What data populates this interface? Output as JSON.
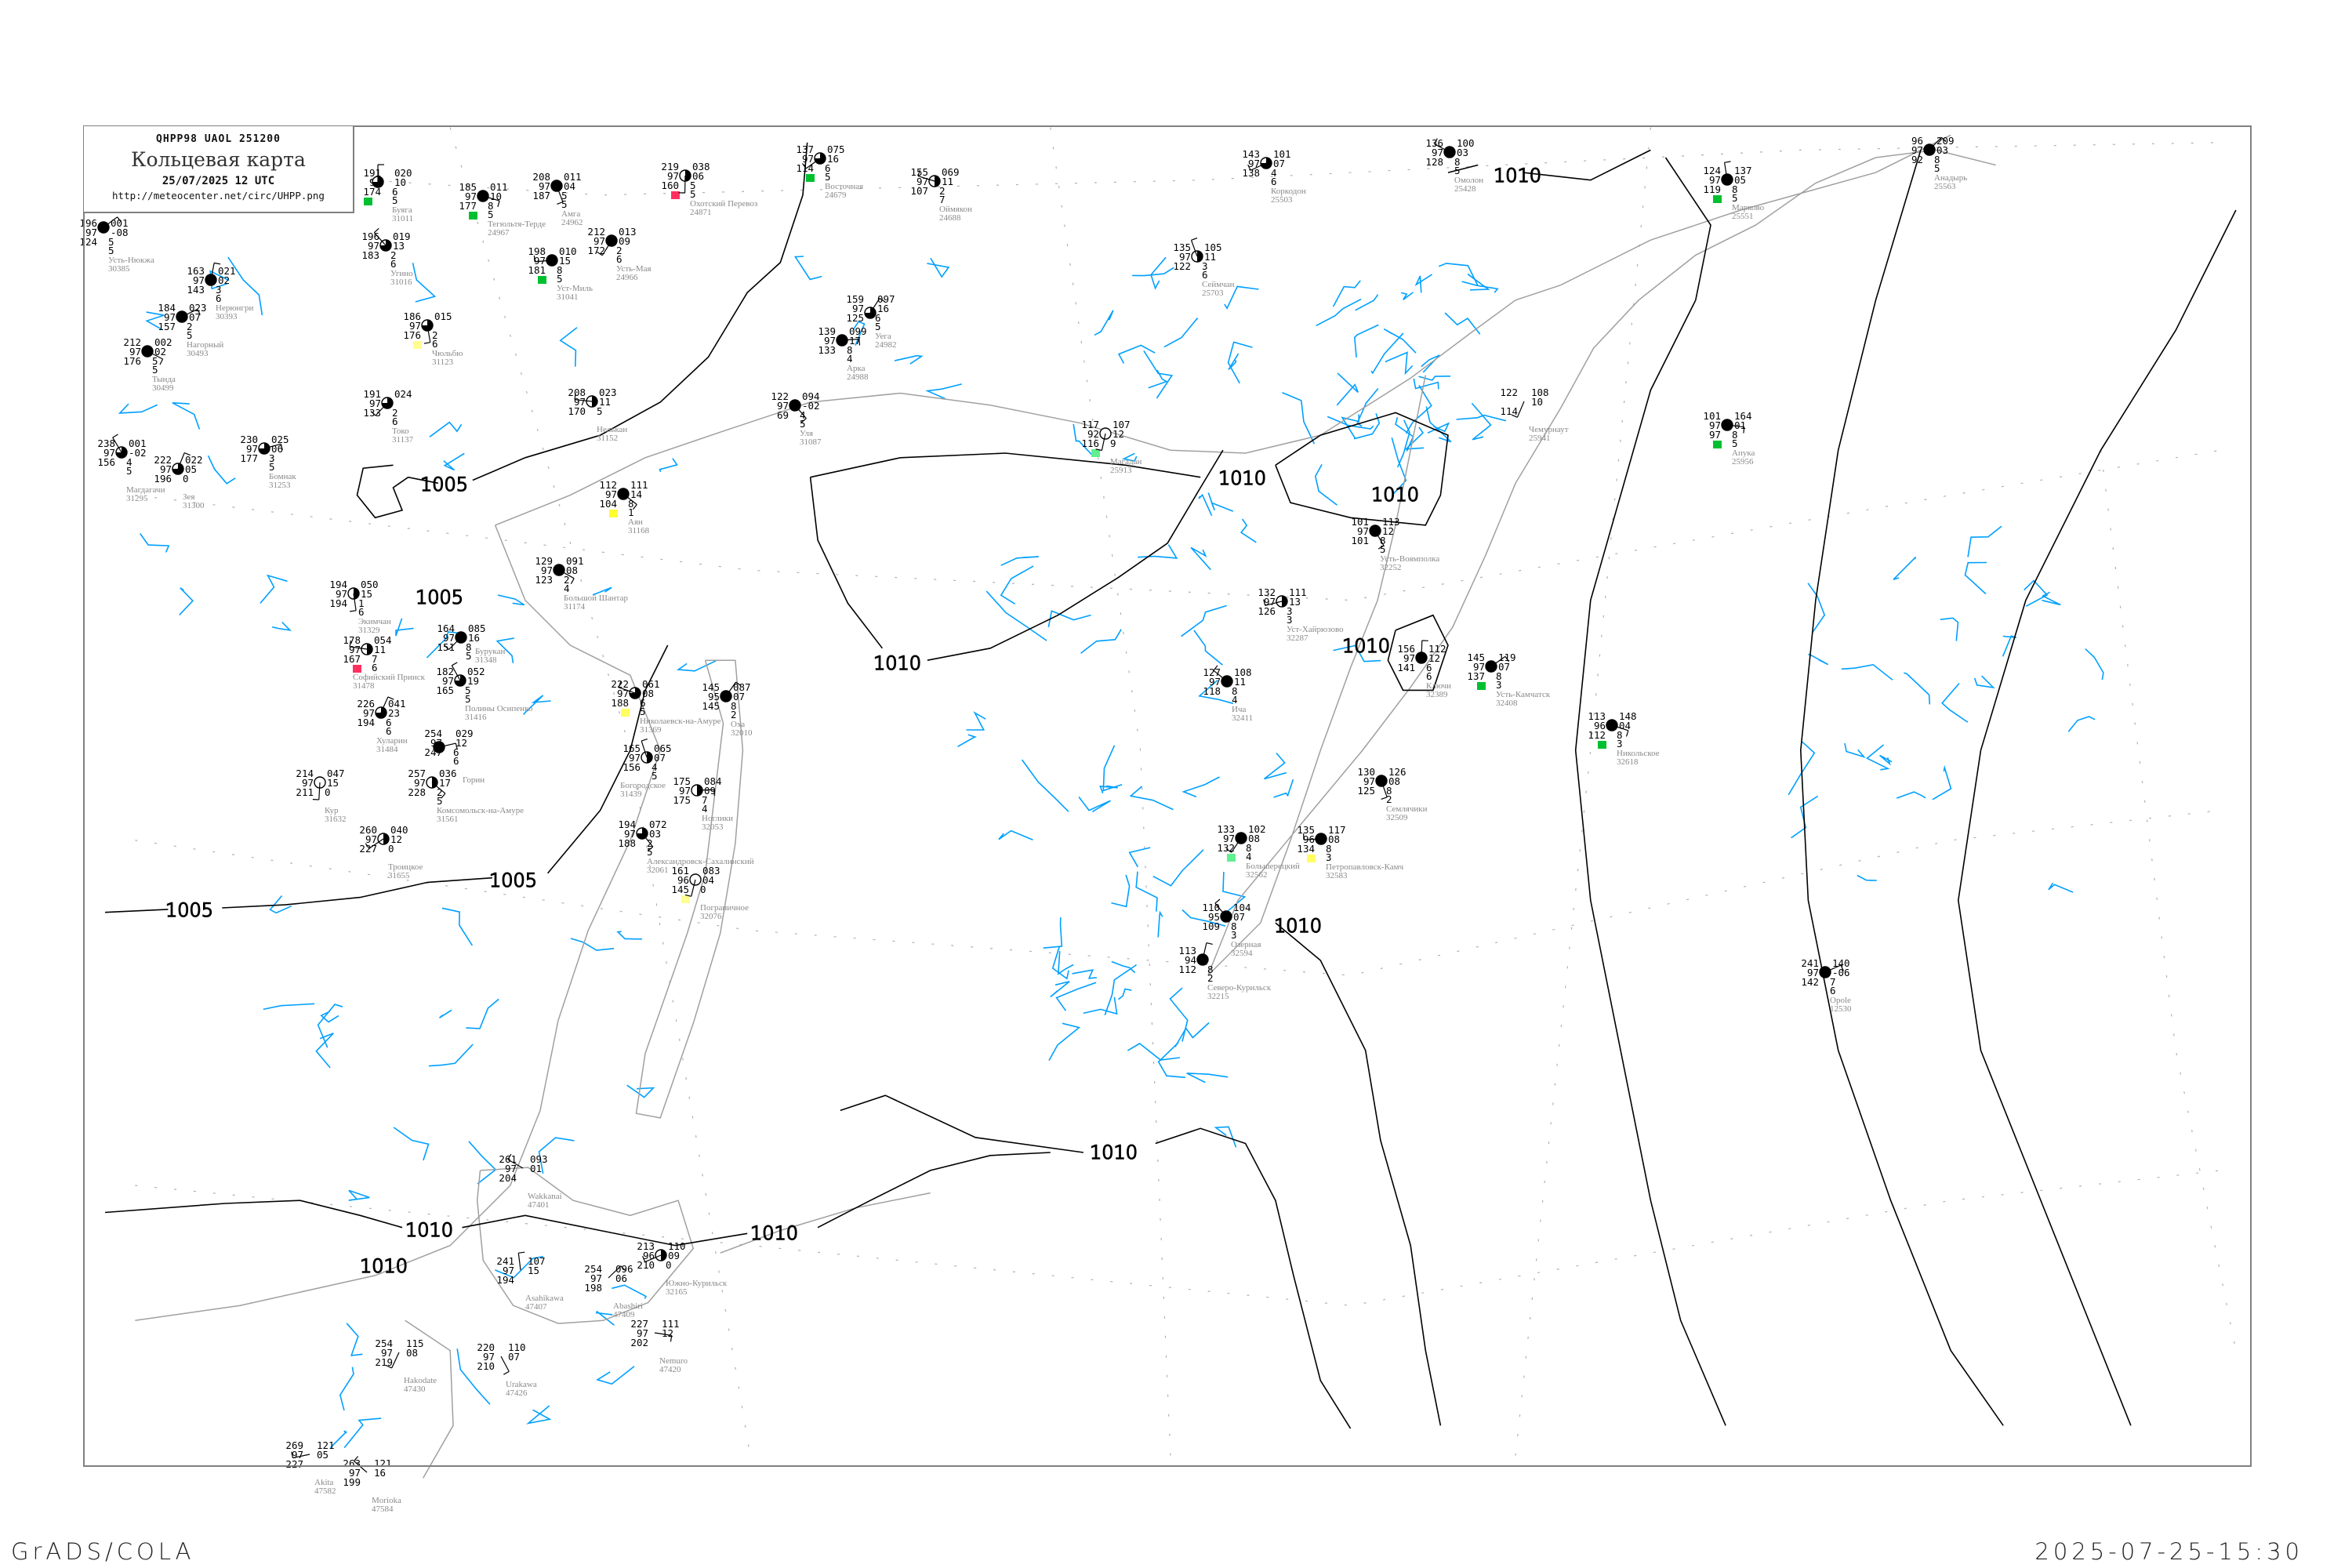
{
  "header": {
    "codes": "QHPP98  UAOL  251200",
    "title": "Кольцевая карта",
    "datetime": "25/07/2025 12 UTC",
    "url": "http://meteocenter.net/circ/UHPP.png"
  },
  "footer": {
    "software": "GrADS/COLA",
    "timestamp": "2025-07-25-15:30"
  },
  "colors": {
    "isobar": "#000000",
    "coastline": "#a0a0a0",
    "rivers": "#00a0ff",
    "frame": "#808080",
    "station_name": "#8a8a8a",
    "precip_green": "#00c030",
    "precip_red": "#ff3060",
    "precip_yellow": "#ffff30"
  },
  "isobars": {
    "labels": [
      "1005",
      "1005",
      "1005",
      "1005",
      "1010",
      "1010",
      "1010",
      "1010",
      "1010",
      "1010",
      "1010",
      "1010",
      "1010",
      "1010"
    ]
  },
  "stations": [
    {
      "name": "Буяга",
      "index": "31011",
      "temp": "191",
      "pressure": "020",
      "vis": "97",
      "tendency": "10",
      "dewpoint": "174",
      "low": "6",
      "height": "5",
      "cloud": 0.75
    },
    {
      "name": "Усть-Нюкжа",
      "index": "30385",
      "temp": "196",
      "pressure": "001",
      "vis": "97",
      "tendency": "-08",
      "dewpoint": "124",
      "low": "5",
      "height": "5",
      "cloud": 1
    },
    {
      "name": "Тегюльтя-Терде",
      "index": "24967",
      "temp": "185",
      "pressure": "011",
      "vis": "97",
      "tendency": "10",
      "dewpoint": "177",
      "low": "8",
      "height": "5",
      "cloud": 1
    },
    {
      "name": "Амга",
      "index": "24962",
      "temp": "208",
      "pressure": "011",
      "vis": "97",
      "tendency": "04",
      "dewpoint": "187",
      "low": "5",
      "height": "5",
      "cloud": 1
    },
    {
      "name": "Усть-Мая",
      "index": "24966",
      "temp": "212",
      "pressure": "013",
      "vis": "97",
      "tendency": "09",
      "dewpoint": "172",
      "low": "2",
      "height": "6",
      "cloud": 1
    },
    {
      "name": "Уст-Миль",
      "index": "31041",
      "temp": "198",
      "pressure": "010",
      "vis": "97",
      "tendency": "15",
      "dewpoint": "181",
      "low": "8",
      "height": "5",
      "cloud": 1
    },
    {
      "name": "Угино",
      "index": "31016",
      "temp": "196",
      "pressure": "019",
      "vis": "97",
      "tendency": "13",
      "dewpoint": "183",
      "low": "2",
      "height": "6",
      "cloud": 0.75
    },
    {
      "name": "Нерюнгри",
      "index": "30393",
      "temp": "163",
      "pressure": "021",
      "vis": "97",
      "tendency": "02",
      "dewpoint": "143",
      "low": "3",
      "height": "6",
      "cloud": 1
    },
    {
      "name": "Нагорный",
      "index": "30493",
      "temp": "184",
      "pressure": "023",
      "vis": "97",
      "tendency": "07",
      "dewpoint": "157",
      "low": "2",
      "height": "5",
      "cloud": 1
    },
    {
      "name": "Тында",
      "index": "30499",
      "temp": "212",
      "pressure": "002",
      "vis": "97",
      "tendency": "02",
      "dewpoint": "176",
      "low": "5",
      "height": "5",
      "cloud": 1
    },
    {
      "name": "Чюльбю",
      "index": "31123",
      "temp": "186",
      "pressure": "015",
      "vis": "97",
      "tendency": "",
      "dewpoint": "176",
      "low": "2",
      "height": "6",
      "cloud": 0.75
    },
    {
      "name": "Токо",
      "index": "31137",
      "temp": "191",
      "pressure": "024",
      "vis": "97",
      "tendency": "",
      "dewpoint": "133",
      "low": "2",
      "height": "6",
      "cloud": 0.75
    },
    {
      "name": "Нелькан",
      "index": "31152",
      "temp": "208",
      "pressure": "023",
      "vis": "97",
      "tendency": "11",
      "dewpoint": "170",
      "low": "5",
      "height": "",
      "cloud": 0.5
    },
    {
      "name": "Магдагачи",
      "index": "31295",
      "temp": "238",
      "pressure": "001",
      "vis": "97",
      "tendency": "-02",
      "dewpoint": "156",
      "low": "4",
      "height": "5",
      "cloud": 0.75
    },
    {
      "name": "Зея",
      "index": "31300",
      "temp": "222",
      "pressure": "022",
      "vis": "97",
      "tendency": "05",
      "dewpoint": "196",
      "low": "0",
      "height": "",
      "cloud": 0.75
    },
    {
      "name": "Бомнак",
      "index": "31253",
      "temp": "230",
      "pressure": "025",
      "vis": "97",
      "tendency": "06",
      "dewpoint": "177",
      "low": "3",
      "height": "5",
      "cloud": 0.75
    },
    {
      "name": "Аян",
      "index": "31168",
      "temp": "112",
      "pressure": "111",
      "vis": "97",
      "tendency": "14",
      "dewpoint": "104",
      "low": "8",
      "height": "1",
      "cloud": 1
    },
    {
      "name": "Охотский Перевоз",
      "index": "24871",
      "temp": "219",
      "pressure": "038",
      "vis": "97",
      "tendency": "06",
      "dewpoint": "160",
      "low": "5",
      "height": "5",
      "cloud": 0.5
    },
    {
      "name": "Восточная",
      "index": "24679",
      "temp": "137",
      "pressure": "075",
      "vis": "97",
      "tendency": "16",
      "dewpoint": "114",
      "low": "6",
      "height": "5",
      "cloud": 0.75
    },
    {
      "name": "Оймякон",
      "index": "24688",
      "temp": "155",
      "pressure": "069",
      "vis": "97",
      "tendency": "11",
      "dewpoint": "107",
      "low": "2",
      "height": "7",
      "cloud": 0.5
    },
    {
      "name": "Сеймчан",
      "index": "25703",
      "temp": "135",
      "pressure": "105",
      "vis": "97",
      "tendency": "11",
      "dewpoint": "122",
      "low": "3",
      "height": "6",
      "cloud": 0.5
    },
    {
      "name": "Уега",
      "index": "24982",
      "temp": "159",
      "pressure": "097",
      "vis": "97",
      "tendency": "16",
      "dewpoint": "125",
      "low": "6",
      "height": "5",
      "cloud": 0.75
    },
    {
      "name": "Арка",
      "index": "24988",
      "temp": "139",
      "pressure": "099",
      "vis": "97",
      "tendency": "17",
      "dewpoint": "133",
      "low": "8",
      "height": "4",
      "cloud": 1
    },
    {
      "name": "Уля",
      "index": "31087",
      "temp": "122",
      "pressure": "094",
      "vis": "97",
      "tendency": "-02",
      "dewpoint": "69",
      "low": "4",
      "height": "5",
      "cloud": 1
    },
    {
      "name": "Магадан",
      "index": "25913",
      "temp": "117",
      "pressure": "107",
      "vis": "92",
      "tendency": "12",
      "dewpoint": "116",
      "low": "9",
      "height": "",
      "cloud": 0
    },
    {
      "name": "Коркодон",
      "index": "25503",
      "temp": "143",
      "pressure": "101",
      "vis": "97",
      "tendency": "07",
      "dewpoint": "138",
      "low": "4",
      "height": "6",
      "cloud": 0.75
    },
    {
      "name": "Омолон",
      "index": "25428",
      "temp": "136",
      "pressure": "100",
      "vis": "97",
      "tendency": "03",
      "dewpoint": "128",
      "low": "8",
      "height": "5",
      "cloud": 1
    },
    {
      "name": "Марково",
      "index": "25551",
      "temp": "124",
      "pressure": "137",
      "vis": "97",
      "tendency": "05",
      "dewpoint": "119",
      "low": "8",
      "height": "5",
      "cloud": 1
    },
    {
      "name": "Анадырь",
      "index": "25563",
      "temp": "96",
      "pressure": "209",
      "vis": "97",
      "tendency": "03",
      "dewpoint": "92",
      "low": "8",
      "height": "5",
      "cloud": 1
    },
    {
      "name": "Апука",
      "index": "25956",
      "temp": "101",
      "pressure": "164",
      "vis": "97",
      "tendency": "01",
      "dewpoint": "97",
      "low": "8",
      "height": "5",
      "cloud": 1
    },
    {
      "name": "Усть-Воямполка",
      "index": "32252",
      "temp": "101",
      "pressure": "113",
      "vis": "97",
      "tendency": "12",
      "dewpoint": "101",
      "low": "8",
      "height": "5",
      "cloud": 1
    },
    {
      "name": "Чемурнаут",
      "index": "25941",
      "temp": "122",
      "pressure": "108",
      "vis": "",
      "tendency": "10",
      "dewpoint": "114",
      "low": "",
      "height": "",
      "cloud": -1
    },
    {
      "name": "Уст-Хайрюзово",
      "index": "32287",
      "temp": "132",
      "pressure": "111",
      "vis": "97",
      "tendency": "13",
      "dewpoint": "126",
      "low": "3",
      "height": "3",
      "cloud": 0.5
    },
    {
      "name": "Ича",
      "index": "32411",
      "temp": "127",
      "pressure": "108",
      "vis": "97",
      "tendency": "11",
      "dewpoint": "118",
      "low": "8",
      "height": "4",
      "cloud": 1
    },
    {
      "name": "Ключи",
      "index": "32389",
      "temp": "156",
      "pressure": "112",
      "vis": "97",
      "tendency": "12",
      "dewpoint": "141",
      "low": "6",
      "height": "6",
      "cloud": 1
    },
    {
      "name": "Усть-Камчатск",
      "index": "32408",
      "temp": "145",
      "pressure": "119",
      "vis": "97",
      "tendency": "07",
      "dewpoint": "137",
      "low": "8",
      "height": "3",
      "cloud": 1
    },
    {
      "name": "Никольское",
      "index": "32618",
      "temp": "113",
      "pressure": "148",
      "vis": "96",
      "tendency": "04",
      "dewpoint": "112",
      "low": "8",
      "height": "3",
      "cloud": 1
    },
    {
      "name": "Семлячики",
      "index": "32509",
      "temp": "130",
      "pressure": "126",
      "vis": "97",
      "tendency": "08",
      "dewpoint": "125",
      "low": "8",
      "height": "2",
      "cloud": 1
    },
    {
      "name": "Большерецкий",
      "index": "32562",
      "temp": "133",
      "pressure": "102",
      "vis": "97",
      "tendency": "08",
      "dewpoint": "132",
      "low": "8",
      "height": "4",
      "cloud": 1
    },
    {
      "name": "Петропавловск-Камч",
      "index": "32583",
      "temp": "135",
      "pressure": "117",
      "vis": "96",
      "tendency": "08",
      "dewpoint": "134",
      "low": "8",
      "height": "3",
      "cloud": 1
    },
    {
      "name": "Озерная",
      "index": "32594",
      "temp": "110",
      "pressure": "104",
      "vis": "95",
      "tendency": "07",
      "dewpoint": "109",
      "low": "8",
      "height": "3",
      "cloud": 1
    },
    {
      "name": "Северо-Курильск",
      "index": "32215",
      "temp": "113",
      "pressure": "",
      "vis": "94",
      "tendency": "",
      "dewpoint": "112",
      "low": "8",
      "height": "2",
      "cloud": 1
    },
    {
      "name": "Opole",
      "index": "12530",
      "temp": "241",
      "pressure": "140",
      "vis": "97",
      "tendency": "-06",
      "dewpoint": "142",
      "low": "7",
      "height": "6",
      "cloud": 1
    },
    {
      "name": "Большой Шантар",
      "index": "31174",
      "temp": "129",
      "pressure": "091",
      "vis": "97",
      "tendency": "08",
      "dewpoint": "123",
      "low": "2",
      "height": "4",
      "cloud": 1
    },
    {
      "name": "Экимчан",
      "index": "31329",
      "temp": "194",
      "pressure": "050",
      "vis": "97",
      "tendency": "15",
      "dewpoint": "194",
      "low": "1",
      "height": "6",
      "cloud": 0.5
    },
    {
      "name": "Бурукан",
      "index": "31348",
      "temp": "164",
      "pressure": "085",
      "vis": "97",
      "tendency": "16",
      "dewpoint": "151",
      "low": "8",
      "height": "5",
      "cloud": 1
    },
    {
      "name": "Софийский Прииск",
      "index": "31478",
      "temp": "178",
      "pressure": "054",
      "vis": "97",
      "tendency": "11",
      "dewpoint": "167",
      "low": "7",
      "height": "6",
      "cloud": 0.5
    },
    {
      "name": "Полины Осипенко",
      "index": "31416",
      "temp": "182",
      "pressure": "052",
      "vis": "97",
      "tendency": "19",
      "dewpoint": "165",
      "low": "5",
      "height": "5",
      "cloud": 0.75
    },
    {
      "name": "Хуларин",
      "index": "31484",
      "temp": "226",
      "pressure": "041",
      "vis": "97",
      "tendency": "23",
      "dewpoint": "194",
      "low": "6",
      "height": "6",
      "cloud": 0.75
    },
    {
      "name": "Горин",
      "index": "",
      "temp": "254",
      "pressure": "029",
      "vis": "97",
      "tendency": "12",
      "dewpoint": "247",
      "low": "6",
      "height": "6",
      "cloud": 1
    },
    {
      "name": "Комсомольск-на-Амуре",
      "index": "31561",
      "temp": "257",
      "pressure": "036",
      "vis": "97",
      "tendency": "17",
      "dewpoint": "228",
      "low": "2",
      "height": "5",
      "cloud": 0.5
    },
    {
      "name": "Кур",
      "index": "31632",
      "temp": "214",
      "pressure": "047",
      "vis": "97",
      "tendency": "15",
      "dewpoint": "211",
      "low": "0",
      "height": "",
      "cloud": 0
    },
    {
      "name": "Троицкое",
      "index": "31655",
      "temp": "260",
      "pressure": "040",
      "vis": "97",
      "tendency": "12",
      "dewpoint": "227",
      "low": "0",
      "height": "",
      "cloud": 0.5
    },
    {
      "name": "Николаевск-на-Амуре",
      "index": "31369",
      "temp": "222",
      "pressure": "061",
      "vis": "97",
      "tendency": "08",
      "dewpoint": "188",
      "low": "6",
      "height": "5",
      "cloud": 0.75
    },
    {
      "name": "Богородское",
      "index": "31439",
      "temp": "165",
      "pressure": "065",
      "vis": "97",
      "tendency": "07",
      "dewpoint": "156",
      "low": "4",
      "height": "5",
      "cloud": 0.5
    },
    {
      "name": "Оха",
      "index": "32010",
      "temp": "145",
      "pressure": "087",
      "vis": "95",
      "tendency": "07",
      "dewpoint": "145",
      "low": "8",
      "height": "2",
      "cloud": 1
    },
    {
      "name": "Ноглики",
      "index": "32053",
      "temp": "175",
      "pressure": "084",
      "vis": "97",
      "tendency": "09",
      "dewpoint": "175",
      "low": "7",
      "height": "4",
      "cloud": 0.5
    },
    {
      "name": "Александровск-Сахалинский",
      "index": "32061",
      "temp": "194",
      "pressure": "072",
      "vis": "97",
      "tendency": "03",
      "dewpoint": "188",
      "low": "2",
      "height": "5",
      "cloud": 0.75
    },
    {
      "name": "Пограничное",
      "index": "32076",
      "temp": "161",
      "pressure": "083",
      "vis": "96",
      "tendency": "04",
      "dewpoint": "145",
      "low": "0",
      "height": "",
      "cloud": 0
    },
    {
      "name": "Южно-Курильск",
      "index": "32165",
      "temp": "213",
      "pressure": "110",
      "vis": "96",
      "tendency": "09",
      "dewpoint": "210",
      "low": "0",
      "height": "",
      "cloud": 0.5
    },
    {
      "name": "Wakkanai",
      "index": "47401",
      "temp": "261",
      "pressure": "093",
      "vis": "97",
      "tendency": "01",
      "dewpoint": "204",
      "low": "",
      "height": "",
      "cloud": -1
    },
    {
      "name": "Asahikawa",
      "index": "47407",
      "temp": "241",
      "pressure": "107",
      "vis": "97",
      "tendency": "15",
      "dewpoint": "194",
      "low": "",
      "height": "",
      "cloud": -1
    },
    {
      "name": "Abashiri",
      "index": "47409",
      "temp": "254",
      "pressure": "096",
      "vis": "97",
      "tendency": "06",
      "dewpoint": "198",
      "low": "",
      "height": "",
      "cloud": -1
    },
    {
      "name": "Nemuro",
      "index": "47420",
      "temp": "227",
      "pressure": "111",
      "vis": "97",
      "tendency": "12",
      "dewpoint": "202",
      "low": "",
      "height": "",
      "cloud": -1
    },
    {
      "name": "Urakawa",
      "index": "47426",
      "temp": "220",
      "pressure": "110",
      "vis": "97",
      "tendency": "07",
      "dewpoint": "210",
      "low": "",
      "height": "",
      "cloud": -1
    },
    {
      "name": "Hakodate",
      "index": "47430",
      "temp": "254",
      "pressure": "115",
      "vis": "97",
      "tendency": "08",
      "dewpoint": "219",
      "low": "",
      "height": "",
      "cloud": -1
    },
    {
      "name": "Akita",
      "index": "47582",
      "temp": "269",
      "pressure": "121",
      "vis": "97",
      "tendency": "05",
      "dewpoint": "227",
      "low": "",
      "height": "",
      "cloud": -1
    },
    {
      "name": "Morioka",
      "index": "47584",
      "temp": "263",
      "pressure": "121",
      "vis": "97",
      "tendency": "16",
      "dewpoint": "199",
      "low": "",
      "height": "",
      "cloud": -1
    }
  ]
}
